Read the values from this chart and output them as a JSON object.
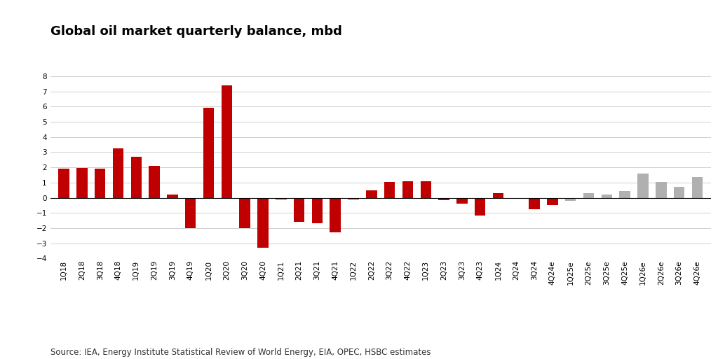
{
  "title": "Global oil market quarterly balance, mbd",
  "source": "Source: IEA, Energy Institute Statistical Review of World Energy, EIA, OPEC, HSBC estimates",
  "categories": [
    "1Q18",
    "2Q18",
    "3Q18",
    "4Q18",
    "1Q19",
    "2Q19",
    "3Q19",
    "4Q19",
    "1Q20",
    "2Q20",
    "3Q20",
    "4Q20",
    "1Q21",
    "2Q21",
    "3Q21",
    "4Q21",
    "1Q22",
    "2Q22",
    "3Q22",
    "4Q22",
    "1Q23",
    "2Q23",
    "3Q23",
    "4Q23",
    "1Q24",
    "2Q24",
    "3Q24",
    "4Q24e",
    "1Q25e",
    "2Q25e",
    "3Q25e",
    "4Q25e",
    "1Q26e",
    "2Q26e",
    "3Q26e",
    "4Q26e"
  ],
  "values": [
    1.9,
    1.95,
    1.9,
    3.25,
    2.7,
    2.1,
    0.2,
    -2.0,
    5.9,
    7.4,
    -2.0,
    -3.3,
    -0.1,
    -1.6,
    -1.7,
    -2.3,
    -0.1,
    0.5,
    1.05,
    1.1,
    1.1,
    -0.15,
    -0.4,
    -1.15,
    0.3,
    -0.05,
    -0.75,
    -0.5,
    -0.2,
    0.3,
    0.2,
    0.45,
    1.6,
    1.05,
    0.7,
    1.35
  ],
  "bar_colors_type": [
    "red",
    "red",
    "red",
    "red",
    "red",
    "red",
    "red",
    "red",
    "red",
    "red",
    "red",
    "red",
    "red",
    "red",
    "red",
    "red",
    "red",
    "red",
    "red",
    "red",
    "red",
    "red",
    "red",
    "red",
    "red",
    "red",
    "red",
    "red",
    "gray",
    "gray",
    "gray",
    "gray",
    "gray",
    "gray",
    "gray",
    "gray"
  ],
  "red_color": "#c00000",
  "gray_color": "#b0b0b0",
  "ylim": [
    -4,
    9
  ],
  "yticks": [
    -4,
    -3,
    -2,
    -1,
    0,
    1,
    2,
    3,
    4,
    5,
    6,
    7,
    8
  ],
  "background_color": "#ffffff",
  "grid_color": "#d0d0d0",
  "title_fontsize": 13,
  "tick_fontsize": 7.5,
  "source_fontsize": 8.5
}
